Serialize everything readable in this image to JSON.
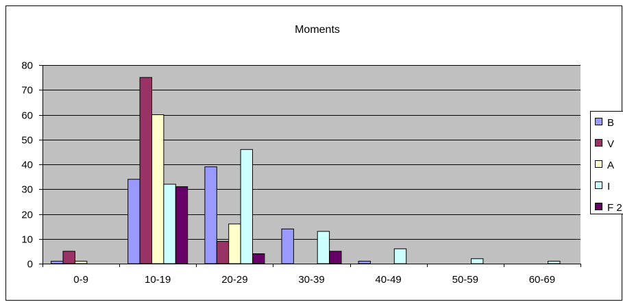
{
  "chart_data": {
    "type": "bar",
    "title": "Moments",
    "xlabel": "",
    "ylabel": "",
    "categories": [
      "0-9",
      "10-19",
      "20-29",
      "30-39",
      "40-49",
      "50-59",
      "60-69"
    ],
    "ylim": [
      0,
      80
    ],
    "yticks": [
      0,
      10,
      20,
      30,
      40,
      50,
      60,
      70,
      80
    ],
    "grid": true,
    "legend_position": "right",
    "plot_background": "#c0c0c0",
    "series": [
      {
        "name": "B",
        "color": "#9999ff",
        "values": [
          1,
          34,
          39,
          14,
          1,
          0,
          0
        ]
      },
      {
        "name": "V",
        "color": "#993366",
        "values": [
          5,
          75,
          9,
          0,
          0,
          0,
          0
        ]
      },
      {
        "name": "A",
        "color": "#ffffcc",
        "values": [
          1,
          60,
          16,
          0,
          0,
          0,
          0
        ]
      },
      {
        "name": "I",
        "color": "#ccffff",
        "values": [
          0,
          32,
          46,
          13,
          6,
          2,
          1
        ]
      },
      {
        "name": "F 2",
        "color": "#660066",
        "values": [
          0,
          31,
          4,
          5,
          0,
          0,
          0
        ]
      }
    ]
  }
}
